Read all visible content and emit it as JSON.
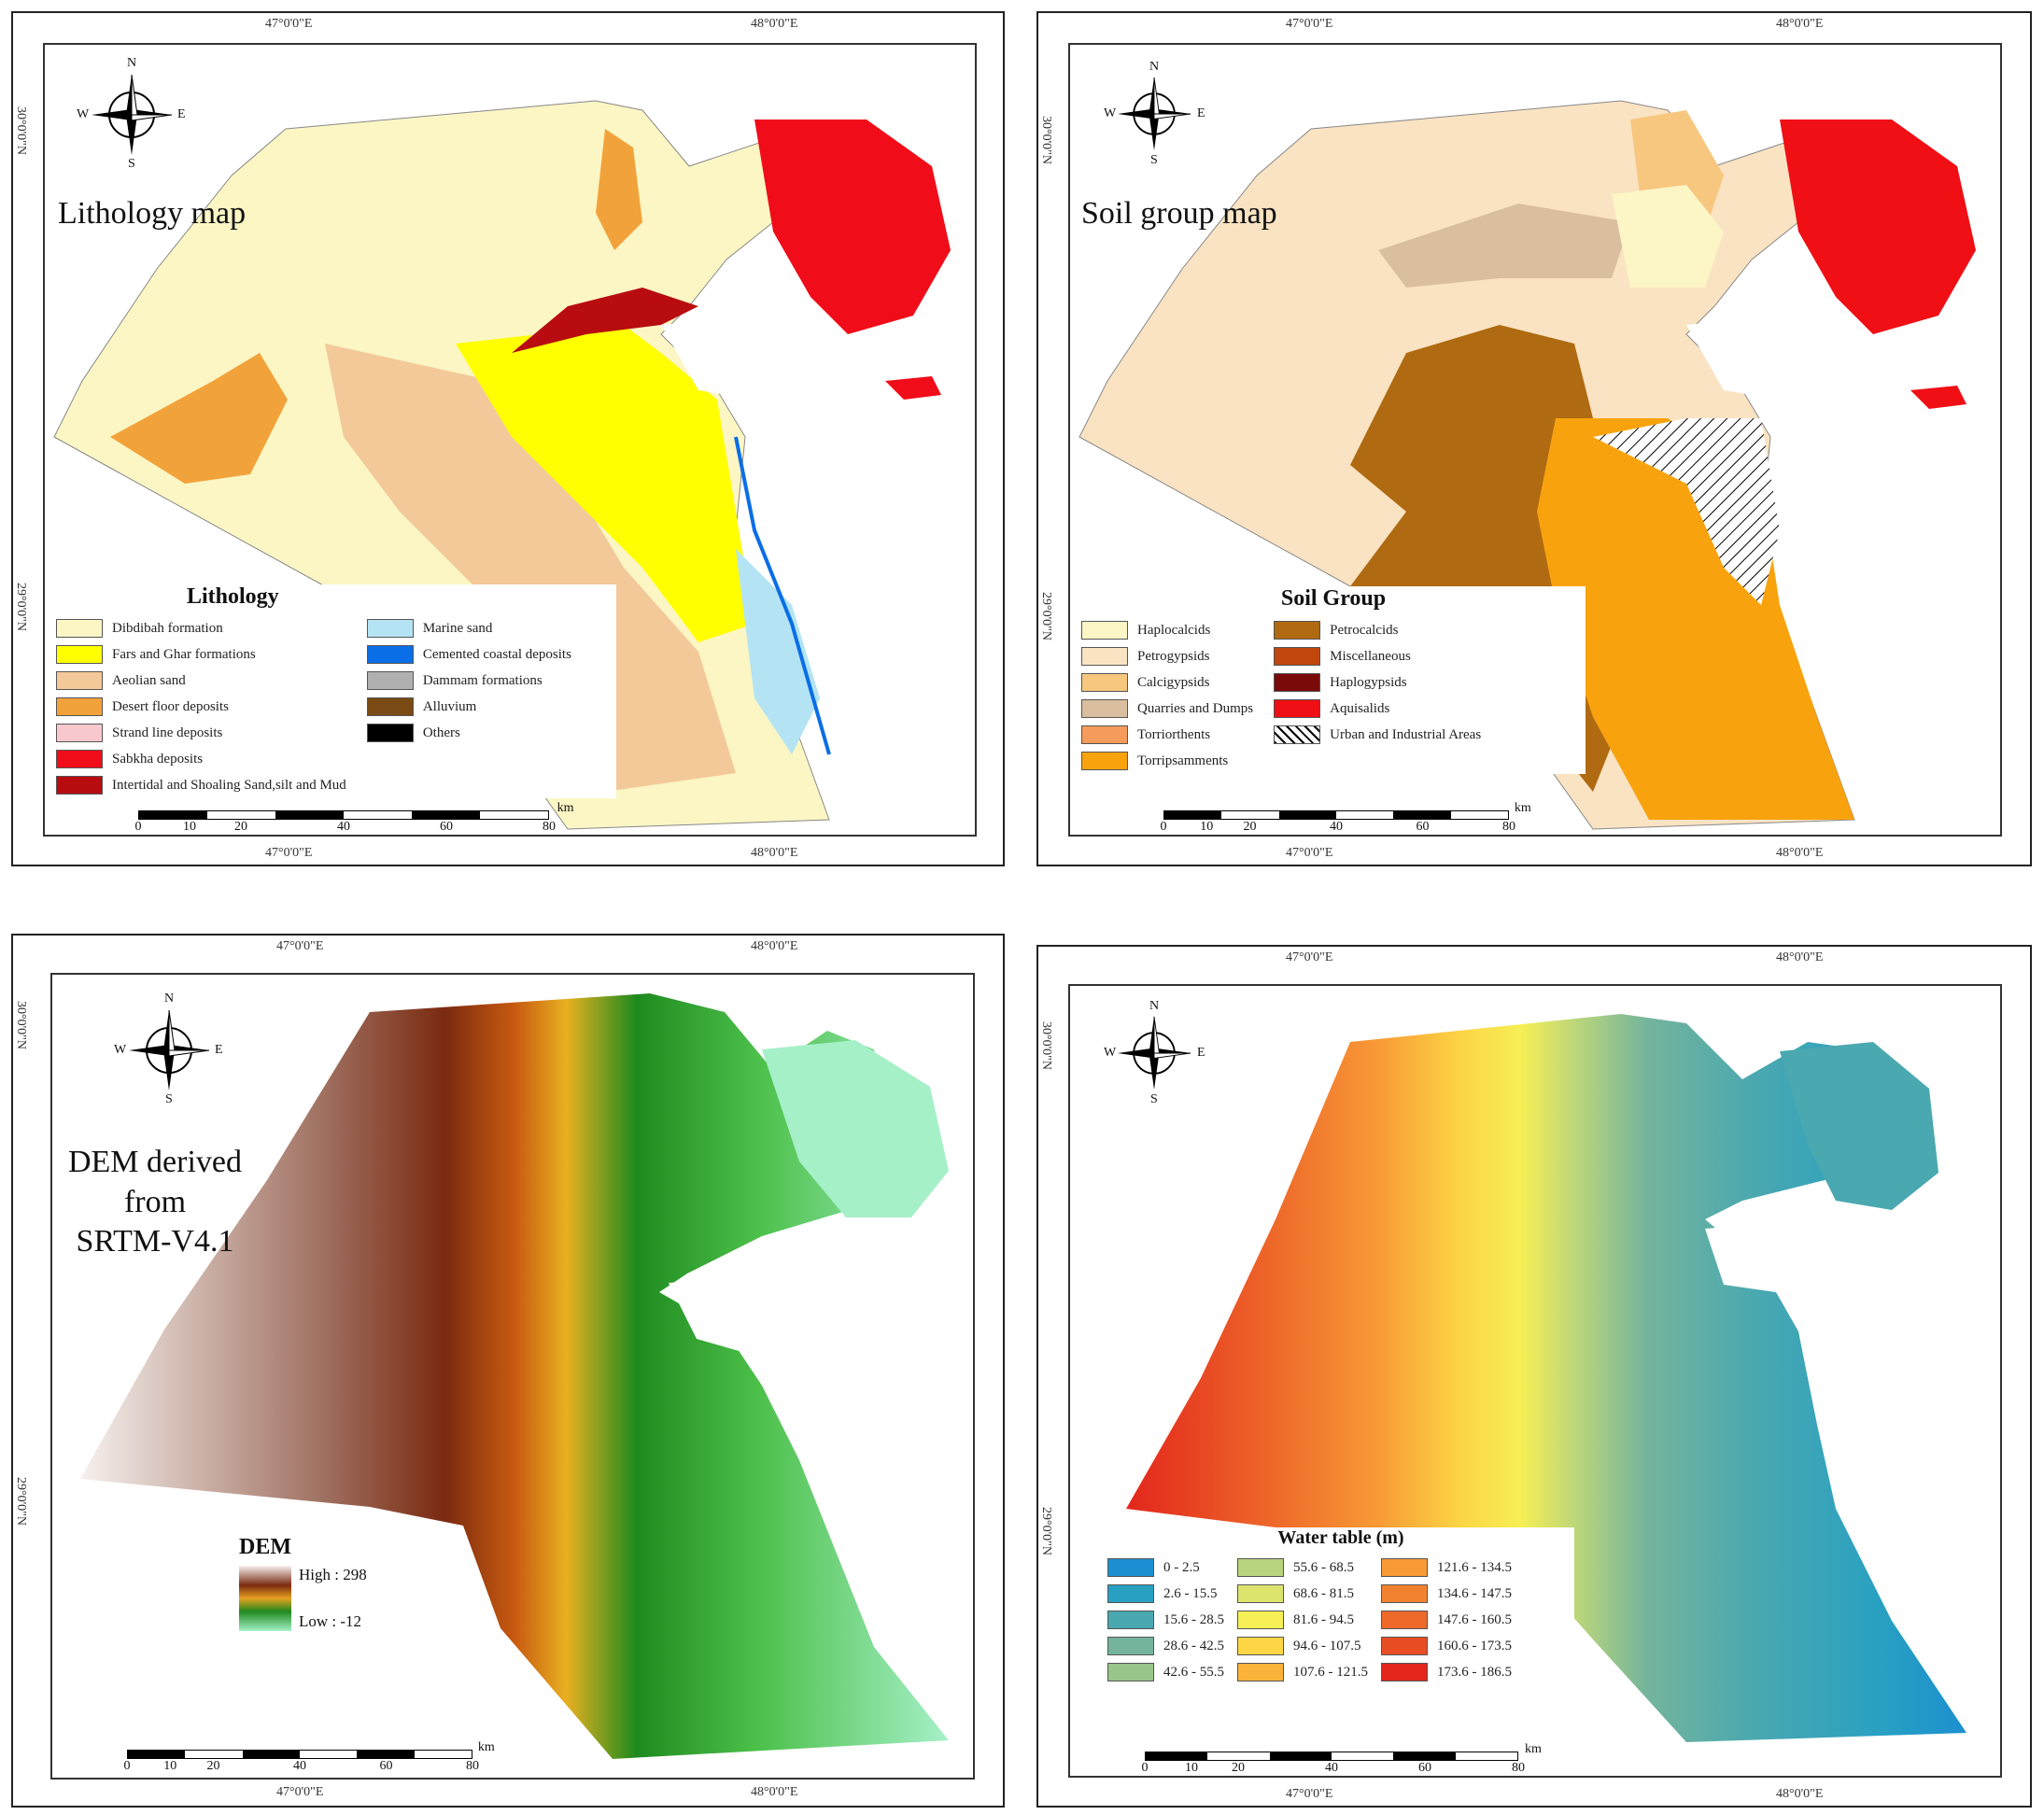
{
  "lithology": {
    "title": "Lithology map",
    "legend_title": "Lithology",
    "coords": {
      "top_left": "47°0'0\"E",
      "top_right": "48°0'0\"E",
      "left_top": "30°0'0\"N",
      "left_bottom": "29°0'0\"N",
      "bottom_left": "47°0'0\"E",
      "bottom_right": "48°0'0\"E"
    },
    "items": [
      {
        "label": "Dibdibah formation",
        "color": "#fbf6c4"
      },
      {
        "label": "Fars and Ghar formations",
        "color": "#ffff00"
      },
      {
        "label": "Aeolian sand",
        "color": "#f3c99a"
      },
      {
        "label": "Desert floor deposits",
        "color": "#f2a23a"
      },
      {
        "label": "Strand line deposits",
        "color": "#f9c8cc"
      },
      {
        "label": "Sabkha deposits",
        "color": "#f00c18"
      },
      {
        "label": "Intertidal and Shoaling Sand,silt and Mud",
        "color": "#b80c10"
      },
      {
        "label": "Marine sand",
        "color": "#b4e4f4"
      },
      {
        "label": "Cemented coastal deposits",
        "color": "#0a6ee6"
      },
      {
        "label": "Dammam formations",
        "color": "#b0b0b0"
      },
      {
        "label": "Alluvium",
        "color": "#7a4a14"
      },
      {
        "label": "Others",
        "color": "#000000"
      }
    ]
  },
  "soil": {
    "title": "Soil group map",
    "legend_title": "Soil Group",
    "coords": {
      "top_left": "47°0'0\"E",
      "top_right": "48°0'0\"E",
      "left_top": "30°0'0\"N",
      "left_bottom": "29°0'0\"N",
      "bottom_left": "47°0'0\"E",
      "bottom_right": "48°0'0\"E"
    },
    "items": [
      {
        "label": "Haplocalcids",
        "color": "#fcf5c6"
      },
      {
        "label": "Petrogypsids",
        "color": "#fae3c2"
      },
      {
        "label": "Calcigypsids",
        "color": "#f7c77f"
      },
      {
        "label": "Quarries and Dumps",
        "color": "#d9bf9f"
      },
      {
        "label": "Torriorthents",
        "color": "#f59b5c"
      },
      {
        "label": "Torripsamments",
        "color": "#f8a30e"
      },
      {
        "label": "Petrocalcids",
        "color": "#b06a12"
      },
      {
        "label": "Miscellaneous",
        "color": "#c0460e"
      },
      {
        "label": "Haplogypsids",
        "color": "#7a0a0a"
      },
      {
        "label": "Aquisalids",
        "color": "#ef0f15"
      },
      {
        "label": "Urban and Industrial Areas",
        "color": "hatch"
      }
    ]
  },
  "dem": {
    "title_lines": [
      "DEM derived",
      "from",
      "SRTM-V4.1"
    ],
    "legend_title": "DEM",
    "high_label": "High : 298",
    "low_label": "Low : -12",
    "coords": {
      "top_left": "47°0'0\"E",
      "top_right": "48°0'0\"E",
      "left_top": "30°0'0\"N",
      "left_bottom": "29°0'0\"N",
      "bottom_left": "47°0'0\"E",
      "bottom_right": "48°0'0\"E"
    }
  },
  "water": {
    "legend_title": "Water table (m)",
    "coords": {
      "top_left": "47°0'0\"E",
      "top_right": "48°0'0\"E",
      "left_top": "30°0'0\"N",
      "left_bottom": "29°0'0\"N",
      "bottom_left": "47°0'0\"E",
      "bottom_right": "48°0'0\"E"
    },
    "items": [
      {
        "label": "0 - 2.5",
        "color": "#1c8fd0"
      },
      {
        "label": "2.6 - 15.5",
        "color": "#28a0c2"
      },
      {
        "label": "15.6 - 28.5",
        "color": "#4aa8b0"
      },
      {
        "label": "28.6 - 42.5",
        "color": "#74b49c"
      },
      {
        "label": "42.6 - 55.5",
        "color": "#98c68a"
      },
      {
        "label": "55.6 - 68.5",
        "color": "#b8d47c"
      },
      {
        "label": "68.6 - 81.5",
        "color": "#dce46e"
      },
      {
        "label": "81.6 - 94.5",
        "color": "#f6ef55"
      },
      {
        "label": "94.6 - 107.5",
        "color": "#fcd644"
      },
      {
        "label": "107.6 - 121.5",
        "color": "#fbb23a"
      },
      {
        "label": "121.6 - 134.5",
        "color": "#f89a36"
      },
      {
        "label": "134.6 - 147.5",
        "color": "#f38230"
      },
      {
        "label": "147.6 - 160.5",
        "color": "#ee6a2a"
      },
      {
        "label": "160.6 - 173.5",
        "color": "#e84d24"
      },
      {
        "label": "173.6 - 186.5",
        "color": "#e3261c"
      }
    ]
  },
  "compass": {
    "n": "N",
    "s": "S",
    "e": "E",
    "w": "W"
  },
  "scale": {
    "unit": "km",
    "ticks": [
      "0",
      "10",
      "20",
      "40",
      "60",
      "80"
    ]
  }
}
